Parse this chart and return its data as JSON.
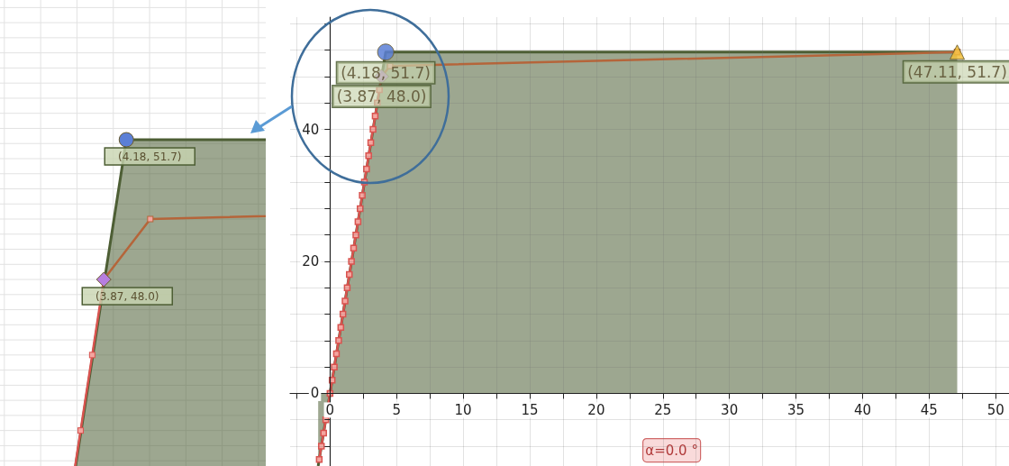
{
  "chart_data": {
    "type": "line",
    "xlim": [
      -3,
      51
    ],
    "ylim": [
      -11,
      57
    ],
    "grid": true,
    "annotations": [
      "α=0.0 °"
    ],
    "xticks": [
      {
        "value": -2.5,
        "label": null
      },
      0,
      {
        "value": 2.5,
        "label": null
      },
      5,
      {
        "value": 7.5,
        "label": null
      },
      10,
      {
        "value": 12.5,
        "label": null
      },
      15,
      {
        "value": 17.5,
        "label": null
      },
      20,
      {
        "value": 22.5,
        "label": null
      },
      25,
      {
        "value": 27.5,
        "label": null
      },
      30,
      {
        "value": 32.5,
        "label": null
      },
      35,
      {
        "value": 37.5,
        "label": null
      },
      40,
      {
        "value": 42.5,
        "label": null
      },
      45,
      {
        "value": 47.5,
        "label": null
      },
      50
    ],
    "yticks": [
      {
        "value": -8,
        "label": null
      },
      {
        "value": -4,
        "label": null
      },
      0,
      {
        "value": 4,
        "label": null
      },
      {
        "value": 8,
        "label": null
      },
      {
        "value": 12,
        "label": null
      },
      {
        "value": 16,
        "label": null
      },
      20,
      {
        "value": 24,
        "label": null
      },
      {
        "value": 28,
        "label": null
      },
      {
        "value": 32,
        "label": null
      },
      {
        "value": 36,
        "label": null
      },
      40,
      {
        "value": 44,
        "label": null
      },
      {
        "value": 48,
        "label": null
      },
      {
        "value": 52,
        "label": null
      },
      {
        "value": 56,
        "label": null
      }
    ],
    "series": [
      {
        "type": "area",
        "color": "#4d5e34",
        "marker": "none",
        "x": [
          -0.89,
          0,
          4.18,
          47.11
        ],
        "values": [
          -11,
          0,
          51.7,
          51.7
        ]
      },
      {
        "type": "line",
        "color": "#d9534f",
        "marker": "square",
        "x": [
          -0.81,
          -0.65,
          -0.48,
          -0.32,
          -0.16,
          0,
          0.16,
          0.32,
          0.48,
          0.65,
          0.81,
          0.97,
          1.13,
          1.29,
          1.45,
          1.61,
          1.77,
          1.94,
          2.1,
          2.26,
          2.42,
          2.58,
          2.74,
          2.9,
          3.06,
          3.23,
          3.39,
          3.55,
          3.71,
          3.87
        ],
        "values": [
          -10,
          -8,
          -6,
          -4,
          null,
          0,
          2,
          4,
          6,
          8,
          10,
          12,
          14,
          16,
          18,
          20,
          22,
          24,
          26,
          28,
          30,
          32,
          34,
          36,
          38,
          40,
          42,
          44,
          46,
          48
        ]
      },
      {
        "type": "line",
        "color": "#b5653a",
        "marker": "square",
        "x": [
          3.87,
          4.51,
          47.11
        ],
        "values": [
          48,
          49.6,
          51.7
        ]
      },
      {
        "type": "scatter",
        "color": "#5b7fd6",
        "marker": "circle",
        "x": [
          4.18
        ],
        "values": [
          51.7
        ],
        "value_labels": [
          "(4.18, 51.7)"
        ]
      },
      {
        "type": "scatter",
        "color": "#b77ee0",
        "marker": "diamond",
        "x": [
          3.87
        ],
        "values": [
          48.0
        ],
        "value_labels": [
          "(3.87, 48.0)"
        ]
      },
      {
        "type": "scatter",
        "color": "#f2c03a",
        "marker": "triangle",
        "x": [
          47.11
        ],
        "values": [
          51.7
        ],
        "value_labels": [
          "(47.11, 51.7)"
        ]
      }
    ]
  }
}
